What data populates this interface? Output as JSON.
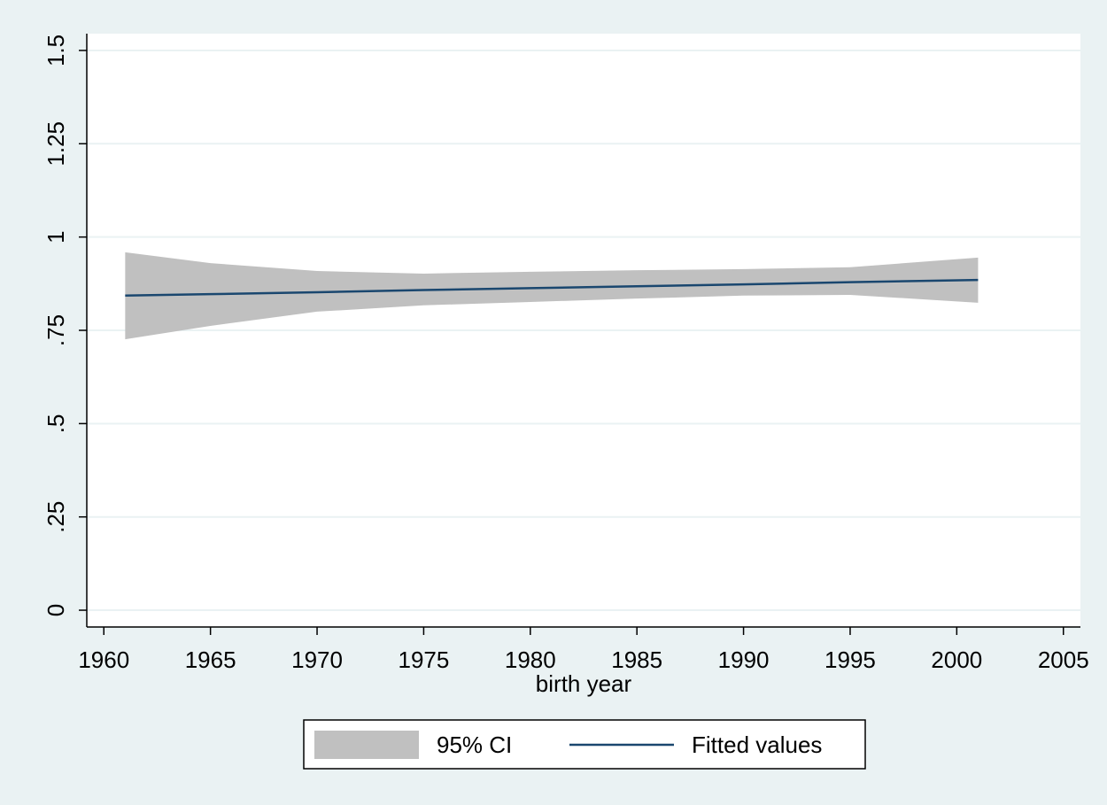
{
  "chart_data": {
    "type": "line",
    "x_label": "birth year",
    "x": [
      1961,
      1965,
      1970,
      1975,
      1980,
      1985,
      1990,
      1995,
      2001
    ],
    "series": [
      {
        "name": "95% CI",
        "color": "#c0c0c0",
        "type": "area",
        "upper": [
          0.959,
          0.93,
          0.909,
          0.902,
          0.907,
          0.911,
          0.914,
          0.919,
          0.945
        ],
        "lower": [
          0.726,
          0.762,
          0.8,
          0.817,
          0.826,
          0.835,
          0.843,
          0.845,
          0.824
        ]
      },
      {
        "name": "Fitted values",
        "color": "#1a476f",
        "type": "line",
        "values": [
          0.843,
          0.847,
          0.852,
          0.858,
          0.863,
          0.868,
          0.873,
          0.879,
          0.885
        ]
      }
    ],
    "xlim": [
      1959.2,
      2005.8
    ],
    "xticks": [
      1960,
      1965,
      1970,
      1975,
      1980,
      1985,
      1990,
      1995,
      2000,
      2005
    ],
    "ylim": [
      -0.045,
      1.545
    ],
    "yticks": [
      0,
      {
        "value": 0.25,
        "label": ".25"
      },
      {
        "value": 0.5,
        "label": ".5"
      },
      {
        "value": 0.75,
        "label": ".75"
      },
      1,
      1.25,
      1.5
    ],
    "grid": true,
    "legend": "bottom"
  }
}
